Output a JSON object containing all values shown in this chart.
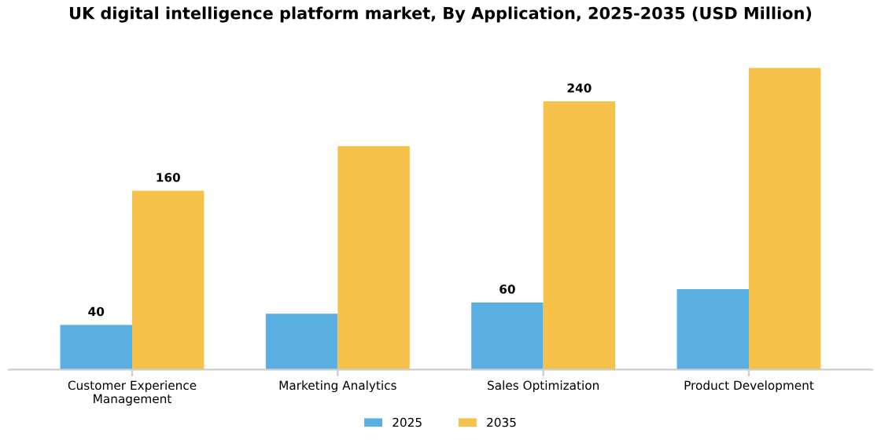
{
  "chart_data": {
    "type": "bar",
    "title": "UK digital intelligence platform market, By Application, 2025-2035 (USD Million)",
    "categories": [
      "Customer Experience\nManagement",
      "Marketing Analytics",
      "Sales Optimization",
      "Product Development"
    ],
    "series": [
      {
        "name": "2025",
        "color": "#5aafe3",
        "values": [
          40,
          50,
          60,
          72
        ],
        "value_labels": [
          "40",
          null,
          "60",
          null
        ]
      },
      {
        "name": "2035",
        "color": "#f6c24a",
        "values": [
          160,
          200,
          240,
          270
        ],
        "value_labels": [
          "160",
          null,
          "240",
          null
        ]
      }
    ],
    "legend": "bottom",
    "grid": false
  }
}
